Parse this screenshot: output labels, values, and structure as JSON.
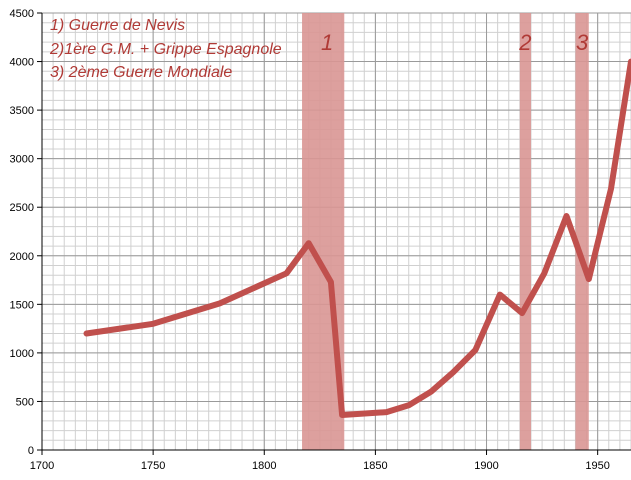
{
  "chart_data": {
    "type": "line",
    "title": "",
    "xlabel": "",
    "ylabel": "",
    "xlim": [
      1700,
      1965
    ],
    "ylim": [
      0,
      4500
    ],
    "x_ticks": [
      1700,
      1750,
      1800,
      1850,
      1900,
      1950
    ],
    "y_ticks": [
      0,
      500,
      1000,
      1500,
      2000,
      2500,
      3000,
      3500,
      4000,
      4500
    ],
    "x_minor_step": 5,
    "y_minor_step": 100,
    "grid": true,
    "colors": {
      "line": "#c0504d",
      "band": "#d99694",
      "legend_text": "#b03a36",
      "grid_major": "#9a9a9a",
      "grid_minor": "#d0d0d0",
      "axis": "#000000"
    },
    "series": [
      {
        "name": "",
        "x": [
          1720,
          1750,
          1780,
          1810,
          1820,
          1830,
          1835,
          1855,
          1865,
          1875,
          1885,
          1895,
          1906,
          1916,
          1926,
          1936,
          1946,
          1956,
          1965
        ],
        "y": [
          1200,
          1300,
          1510,
          1820,
          2130,
          1730,
          360,
          390,
          460,
          600,
          800,
          1030,
          1600,
          1410,
          1820,
          2410,
          1760,
          2690,
          4000
        ]
      }
    ],
    "bands": [
      {
        "label": "1",
        "x_start": 1817,
        "x_end": 1836
      },
      {
        "label": "2",
        "x_start": 1915,
        "x_end": 1920
      },
      {
        "label": "3",
        "x_start": 1940,
        "x_end": 1946
      }
    ],
    "annotations": [
      "1) Guerre de Nevis",
      "2)1ère G.M. + Grippe Espagnole",
      "3) 2ème Guerre Mondiale"
    ]
  }
}
